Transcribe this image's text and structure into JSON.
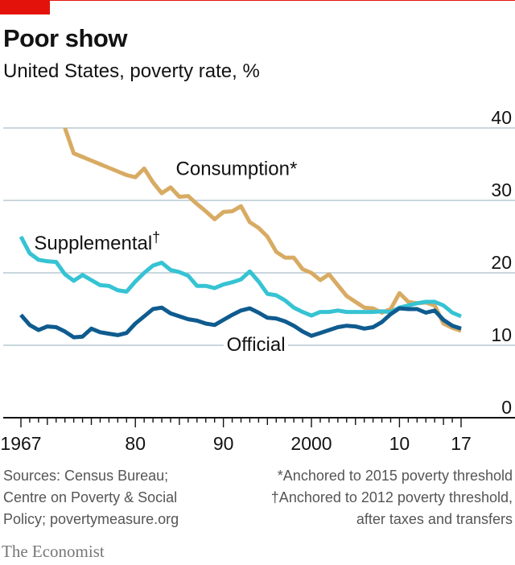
{
  "title": "Poor show",
  "subtitle": "United States, poverty rate, %",
  "sources": [
    "Sources: Census Bureau;",
    "Centre on Poverty & Social",
    "Policy; povertymeasure.org"
  ],
  "footnotes": [
    "*Anchored to 2015 poverty threshold",
    "†Anchored to 2012 poverty threshold,",
    "after taxes and transfers"
  ],
  "brand": "The Economist",
  "chart_data": {
    "type": "line",
    "title": "Poor show",
    "subtitle": "United States, poverty rate, %",
    "ylim": [
      0,
      40
    ],
    "xlim": [
      1967,
      2017
    ],
    "y_ticks": [
      "0",
      "10",
      "20",
      "30",
      "40"
    ],
    "x_ticks": [
      {
        "year": 1967,
        "label": "1967"
      },
      {
        "year": 1980,
        "label": "80"
      },
      {
        "year": 1990,
        "label": "90"
      },
      {
        "year": 2000,
        "label": "2000"
      },
      {
        "year": 2010,
        "label": "10"
      },
      {
        "year": 2017,
        "label": "17"
      }
    ],
    "grid": true,
    "series": [
      {
        "name": "Consumption*",
        "color": "#d8ab63",
        "x": [
          1972,
          1973,
          1974,
          1975,
          1976,
          1977,
          1978,
          1979,
          1980,
          1981,
          1982,
          1983,
          1984,
          1985,
          1986,
          1987,
          1988,
          1989,
          1990,
          1991,
          1992,
          1993,
          1994,
          1995,
          1996,
          1997,
          1998,
          1999,
          2000,
          2001,
          2002,
          2003,
          2004,
          2005,
          2006,
          2007,
          2008,
          2009,
          2010,
          2011,
          2012,
          2013,
          2014,
          2015,
          2016,
          2017
        ],
        "values": [
          40.0,
          36.5,
          36.0,
          35.5,
          35.0,
          34.5,
          34.0,
          33.5,
          33.2,
          34.4,
          32.5,
          31.0,
          31.8,
          30.5,
          30.6,
          29.5,
          28.5,
          27.4,
          28.4,
          28.5,
          29.2,
          27.0,
          26.2,
          25.0,
          22.9,
          22.1,
          22.1,
          20.5,
          20.0,
          19.0,
          19.8,
          18.3,
          16.8,
          16.0,
          15.2,
          15.1,
          14.5,
          15.0,
          17.2,
          16.0,
          15.8,
          15.9,
          15.5,
          13.0,
          12.4,
          12.0
        ]
      },
      {
        "name": "Supplemental†",
        "color": "#36c3d3",
        "x": [
          1967,
          1968,
          1969,
          1970,
          1971,
          1972,
          1973,
          1974,
          1975,
          1976,
          1977,
          1978,
          1979,
          1980,
          1981,
          1982,
          1983,
          1984,
          1985,
          1986,
          1987,
          1988,
          1989,
          1990,
          1991,
          1992,
          1993,
          1994,
          1995,
          1996,
          1997,
          1998,
          1999,
          2000,
          2001,
          2002,
          2003,
          2004,
          2005,
          2006,
          2007,
          2008,
          2009,
          2010,
          2011,
          2012,
          2013,
          2014,
          2015,
          2016,
          2017
        ],
        "values": [
          25.0,
          22.7,
          21.8,
          21.6,
          21.5,
          19.8,
          18.9,
          19.7,
          19.0,
          18.3,
          18.2,
          17.6,
          17.4,
          18.8,
          20.0,
          21.0,
          21.4,
          20.4,
          20.1,
          19.6,
          18.2,
          18.2,
          17.9,
          18.4,
          18.7,
          19.1,
          20.2,
          18.8,
          17.1,
          16.9,
          16.2,
          15.2,
          14.6,
          14.1,
          14.6,
          14.6,
          14.8,
          14.6,
          14.6,
          14.6,
          14.6,
          14.7,
          14.6,
          15.2,
          15.5,
          15.8,
          16.0,
          16.0,
          15.5,
          14.5,
          14.0
        ]
      },
      {
        "name": "Official",
        "color": "#0f5b8f",
        "x": [
          1967,
          1968,
          1969,
          1970,
          1971,
          1972,
          1973,
          1974,
          1975,
          1976,
          1977,
          1978,
          1979,
          1980,
          1981,
          1982,
          1983,
          1984,
          1985,
          1986,
          1987,
          1988,
          1989,
          1990,
          1991,
          1992,
          1993,
          1994,
          1995,
          1996,
          1997,
          1998,
          1999,
          2000,
          2001,
          2002,
          2003,
          2004,
          2005,
          2006,
          2007,
          2008,
          2009,
          2010,
          2011,
          2012,
          2013,
          2014,
          2015,
          2016,
          2017
        ],
        "values": [
          14.2,
          12.8,
          12.1,
          12.6,
          12.5,
          11.9,
          11.1,
          11.2,
          12.3,
          11.8,
          11.6,
          11.4,
          11.7,
          13.0,
          14.0,
          15.0,
          15.2,
          14.4,
          14.0,
          13.6,
          13.4,
          13.0,
          12.8,
          13.5,
          14.2,
          14.8,
          15.1,
          14.5,
          13.8,
          13.7,
          13.3,
          12.7,
          11.9,
          11.3,
          11.7,
          12.1,
          12.5,
          12.7,
          12.6,
          12.3,
          12.5,
          13.2,
          14.3,
          15.1,
          15.0,
          15.0,
          14.5,
          14.8,
          13.5,
          12.7,
          12.3
        ]
      }
    ],
    "annotations": [
      {
        "text": "Consumption*",
        "series": "Consumption*"
      },
      {
        "text": "Supplemental",
        "mark": "†",
        "series": "Supplemental†"
      },
      {
        "text": "Official",
        "series": "Official"
      }
    ]
  }
}
